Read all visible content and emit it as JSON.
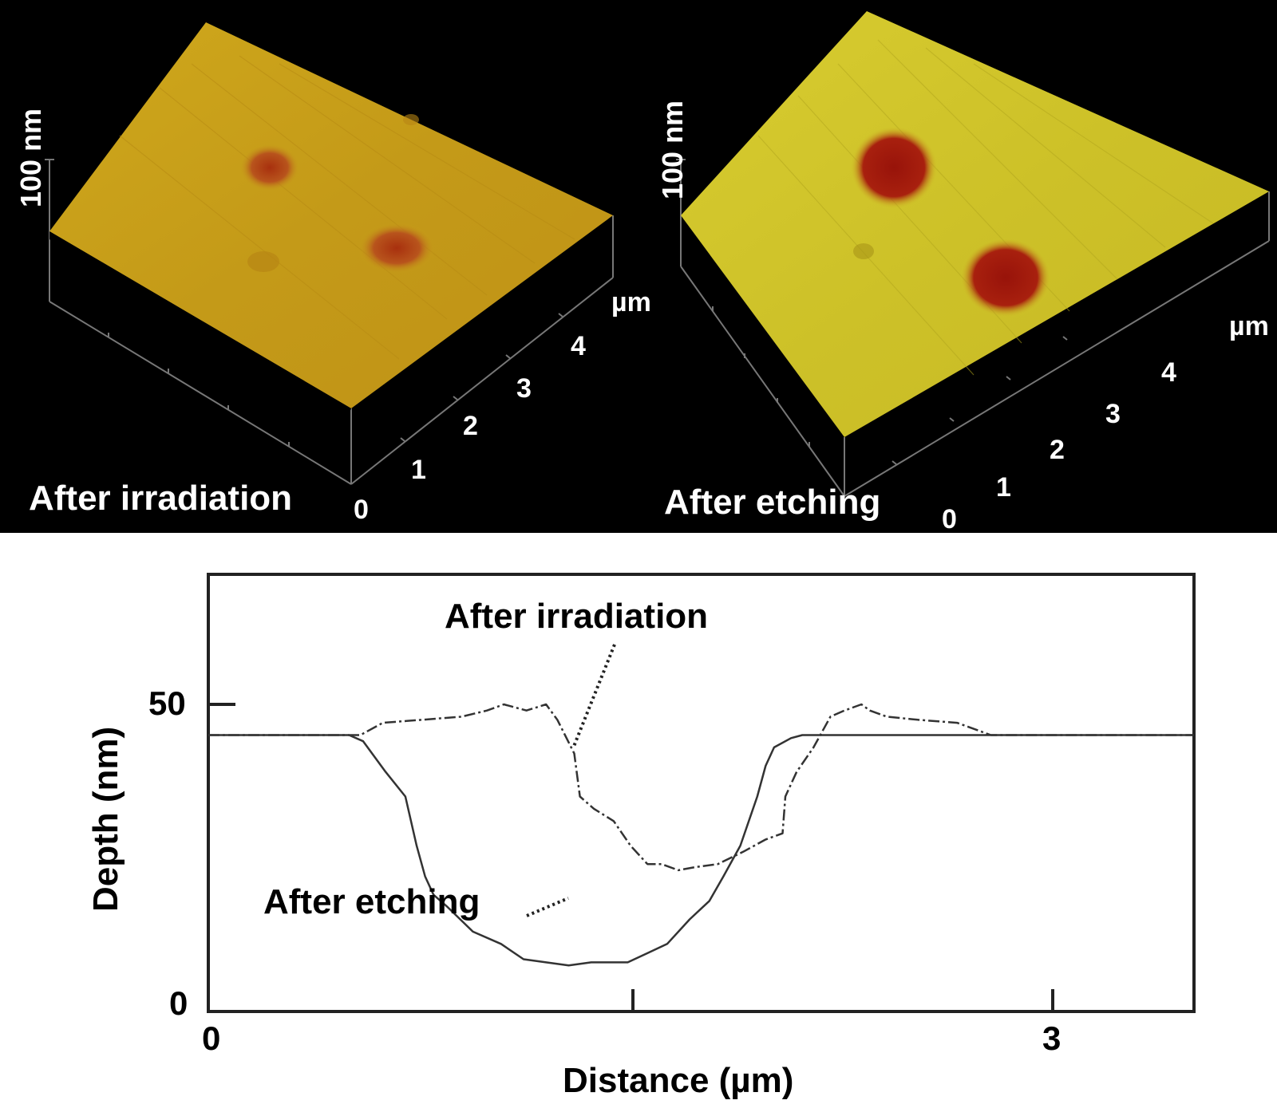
{
  "afm_panels": [
    {
      "label": "After irradiation",
      "z_scale_label": "100 nm",
      "xy_unit": "µm",
      "xy_ticks": [
        "0",
        "1",
        "2",
        "3",
        "4"
      ],
      "surface_color": "#c9a21a",
      "pit_color": "#b5461a"
    },
    {
      "label": "After etching",
      "z_scale_label": "100 nm",
      "xy_unit": "µm",
      "xy_ticks": [
        "0",
        "1",
        "2",
        "3",
        "4"
      ],
      "surface_color": "#d4cc2a",
      "pit_color": "#a0180c"
    }
  ],
  "profile_plot": {
    "ylabel": "Depth (nm)",
    "xlabel": "Distance (µm)",
    "y_ticks": [
      "0",
      "50"
    ],
    "x_ticks": [
      "0",
      "3"
    ],
    "annotation_irradiation": "After irradiation",
    "annotation_etching": "After etching"
  },
  "chart_data": [
    {
      "type": "line",
      "title": "AFM cross-section depth profiles",
      "xlabel": "Distance (µm)",
      "ylabel": "Depth (nm)",
      "xlim": [
        0,
        3.5
      ],
      "ylim": [
        0,
        70
      ],
      "x_ticks": [
        0,
        1.5,
        3
      ],
      "x_tick_labels": [
        "0",
        "",
        "3"
      ],
      "y_ticks": [
        0,
        50
      ],
      "y_tick_labels": [
        "0",
        "50"
      ],
      "grid": false,
      "legend": "inline annotations",
      "series": [
        {
          "name": "After irradiation",
          "style": "dash-dot",
          "x": [
            0.0,
            0.54,
            0.62,
            0.76,
            0.9,
            0.99,
            1.05,
            1.13,
            1.2,
            1.24,
            1.3,
            1.32,
            1.37,
            1.44,
            1.5,
            1.56,
            1.61,
            1.67,
            1.73,
            1.81,
            1.9,
            1.98,
            2.04,
            2.05,
            2.09,
            2.15,
            2.21,
            2.26,
            2.32,
            2.35,
            2.41,
            2.52,
            2.66,
            2.78,
            3.0,
            3.5
          ],
          "y": [
            45,
            45,
            47,
            47.5,
            48,
            49,
            50,
            49,
            50,
            47.5,
            42,
            35,
            33,
            31,
            27,
            24,
            24,
            23,
            23.5,
            24,
            26,
            28,
            29,
            35,
            39,
            43,
            48,
            49,
            50,
            49,
            48,
            47.5,
            47,
            45,
            45,
            45
          ]
        },
        {
          "name": "After etching",
          "style": "solid",
          "x": [
            0.0,
            0.5,
            0.55,
            0.63,
            0.7,
            0.74,
            0.77,
            0.8,
            0.85,
            0.94,
            1.04,
            1.12,
            1.2,
            1.28,
            1.36,
            1.42,
            1.49,
            1.56,
            1.63,
            1.71,
            1.78,
            1.83,
            1.89,
            1.95,
            1.98,
            2.01,
            2.07,
            2.11,
            2.5,
            3.0,
            3.5
          ],
          "y": [
            45,
            45,
            44,
            39,
            35,
            27,
            22,
            19,
            17,
            13,
            11,
            8.5,
            8,
            7.5,
            8,
            8,
            8,
            9.5,
            11,
            15,
            18,
            22,
            27,
            35,
            40,
            43,
            44.5,
            45,
            45,
            45,
            45
          ]
        }
      ]
    },
    {
      "type": "heatmap",
      "title": "After irradiation (3D AFM topography)",
      "xlabel": "µm",
      "ylabel": "µm",
      "zlabel": "100 nm",
      "x_ticks": [
        0,
        1,
        2,
        3,
        4
      ],
      "features": "two shallow pits on flat surface"
    },
    {
      "type": "heatmap",
      "title": "After etching (3D AFM topography)",
      "xlabel": "µm",
      "ylabel": "µm",
      "zlabel": "100 nm",
      "x_ticks": [
        0,
        1,
        2,
        3,
        4
      ],
      "features": "two deeper, well-defined pits on flat surface"
    }
  ]
}
